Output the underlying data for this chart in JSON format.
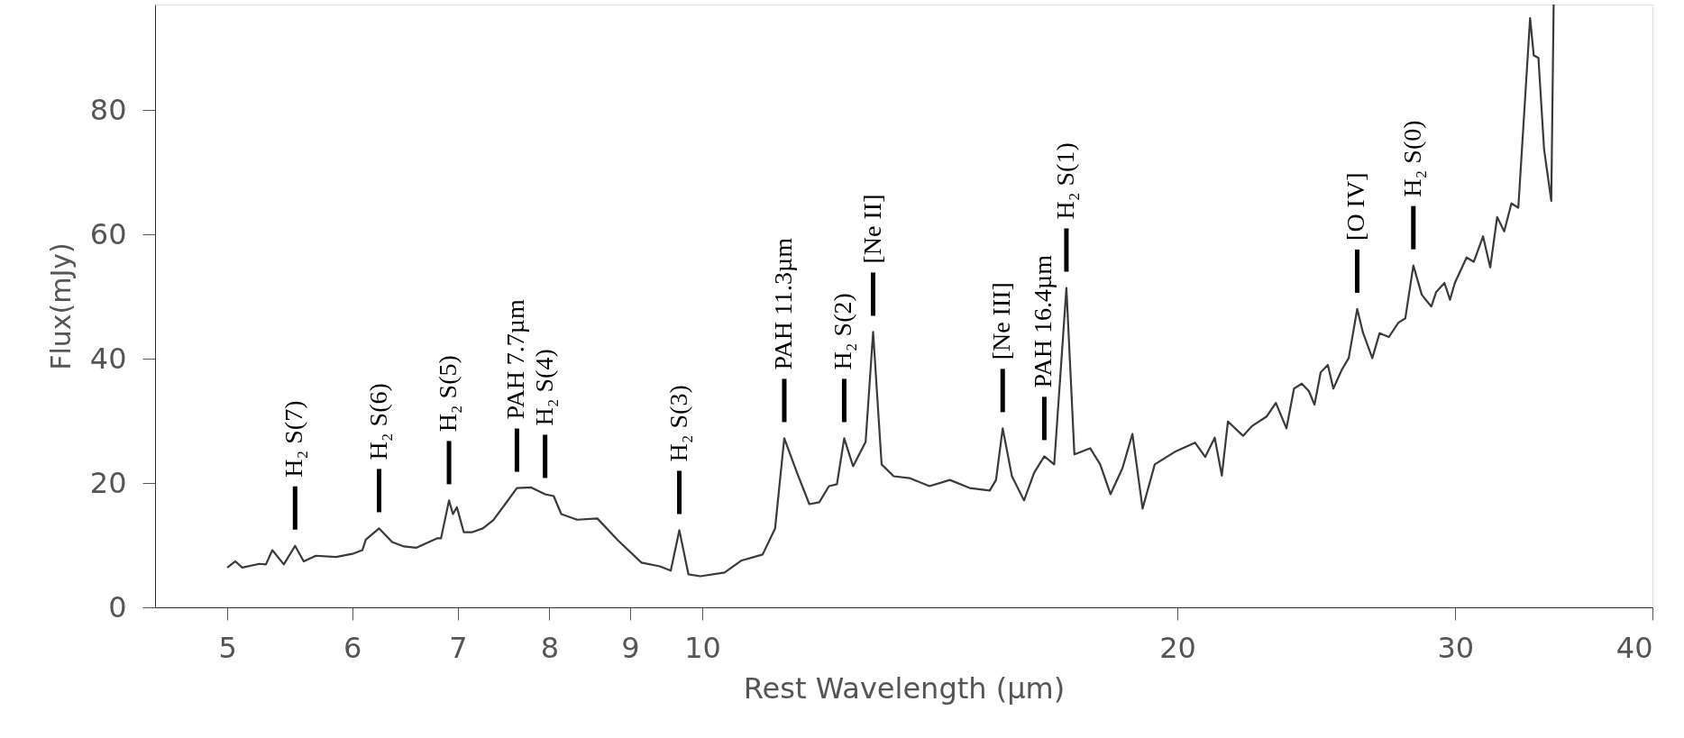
{
  "chart_data": {
    "type": "line",
    "xlabel": "Rest Wavelength (μm)",
    "ylabel": "Flux(mJy)",
    "log": "x",
    "grid": false,
    "xlim": [
      4.5,
      40
    ],
    "xticks": [
      5,
      6,
      7,
      8,
      9,
      10,
      20,
      30,
      40
    ],
    "ylim": [
      0,
      97
    ],
    "yticks": [
      0,
      20,
      40,
      60,
      80
    ],
    "line_style": "solid",
    "marker": "none",
    "series": [
      {
        "color": "#3a3a3a",
        "x": [
          5.0,
          5.06,
          5.11,
          5.24,
          5.29,
          5.34,
          5.43,
          5.52,
          5.59,
          5.69,
          5.86,
          6.0,
          6.09,
          6.12,
          6.24,
          6.36,
          6.47,
          6.59,
          6.79,
          6.83,
          6.91,
          6.95,
          6.99,
          7.06,
          7.15,
          7.26,
          7.37,
          7.5,
          7.63,
          7.79,
          7.95,
          8.05,
          8.14,
          8.33,
          8.58,
          8.84,
          9.15,
          9.4,
          9.55,
          9.67,
          9.8,
          9.97,
          10.33,
          10.58,
          10.92,
          11.12,
          11.27,
          11.48,
          11.69,
          11.86,
          12.03,
          12.17,
          12.3,
          12.46,
          12.69,
          12.83,
          12.99,
          13.22,
          13.53,
          13.93,
          14.35,
          14.77,
          15.21,
          15.35,
          15.5,
          15.71,
          15.99,
          16.23,
          16.47,
          16.71,
          17.01,
          17.21,
          17.61,
          17.87,
          18.14,
          18.46,
          18.73,
          19.01,
          19.35,
          19.92,
          20.52,
          20.83,
          21.12,
          21.34,
          21.53,
          22.01,
          22.31,
          22.78,
          23.09,
          23.45,
          23.71,
          23.98,
          24.23,
          24.43,
          24.65,
          24.91,
          25.11,
          25.42,
          25.68,
          26.0,
          26.22,
          26.58,
          26.86,
          27.23,
          27.61,
          27.89,
          28.22,
          28.57,
          28.97,
          29.17,
          29.53,
          29.77,
          29.98,
          30.5,
          30.82,
          31.24,
          31.57,
          31.89,
          32.22,
          32.56,
          32.89,
          33.46,
          33.64,
          33.87,
          34.15,
          34.51,
          34.63
        ],
        "values": [
          6.4,
          7.4,
          6.4,
          7.0,
          6.9,
          9.2,
          6.9,
          9.9,
          7.4,
          8.3,
          8.1,
          8.6,
          9.2,
          10.9,
          12.7,
          10.5,
          9.8,
          9.6,
          11.1,
          11.1,
          17.2,
          15.0,
          16.1,
          12.1,
          12.1,
          12.7,
          14.0,
          16.6,
          19.2,
          19.3,
          18.2,
          17.9,
          15.0,
          14.1,
          14.3,
          10.8,
          7.2,
          6.6,
          5.9,
          12.4,
          5.3,
          5.0,
          5.6,
          7.5,
          8.5,
          12.7,
          27.2,
          21.7,
          16.6,
          16.9,
          19.5,
          19.8,
          27.2,
          22.7,
          26.6,
          44.3,
          23.0,
          21.1,
          20.8,
          19.5,
          20.5,
          19.2,
          18.8,
          20.5,
          28.8,
          21.1,
          17.2,
          21.7,
          24.3,
          23.0,
          51.4,
          24.6,
          25.6,
          23.0,
          18.2,
          22.4,
          27.9,
          15.9,
          23.0,
          25.0,
          26.5,
          24.2,
          27.3,
          21.2,
          29.9,
          27.6,
          29.2,
          30.7,
          32.9,
          28.8,
          35.2,
          36.0,
          34.8,
          32.6,
          37.8,
          39.0,
          35.2,
          38.2,
          40.1,
          48.0,
          44.2,
          40.1,
          44.1,
          43.5,
          45.8,
          46.5,
          55.0,
          50.3,
          48.4,
          50.7,
          52.2,
          49.5,
          52.2,
          56.3,
          55.6,
          59.7,
          54.7,
          62.8,
          60.5,
          65.0,
          64.3,
          94.8,
          88.8,
          88.4,
          73.7,
          65.4,
          97
        ]
      }
    ],
    "annotations": [
      {
        "text": "H₂ S(7)",
        "x": 5.52,
        "y": 9.9
      },
      {
        "text": "H₂ S(6)",
        "x": 6.24,
        "y": 12.7
      },
      {
        "text": "H₂ S(5)",
        "x": 6.91,
        "y": 17.2
      },
      {
        "text": "PAH 7.7µm",
        "x": 7.63,
        "y": 19.2
      },
      {
        "text": "H₂ S(4)",
        "x": 7.95,
        "y": 18.2
      },
      {
        "text": "H₂ S(3)",
        "x": 9.67,
        "y": 12.4
      },
      {
        "text": "PAH 11.3µm",
        "x": 11.27,
        "y": 27.2
      },
      {
        "text": "H₂ S(2)",
        "x": 12.3,
        "y": 27.2
      },
      {
        "text": "[Ne II]",
        "x": 12.83,
        "y": 44.3
      },
      {
        "text": "[Ne III]",
        "x": 15.5,
        "y": 28.8
      },
      {
        "text": "PAH 16.4µm",
        "x": 16.47,
        "y": 24.3
      },
      {
        "text": "H₂ S(1)",
        "x": 17.01,
        "y": 51.4
      },
      {
        "text": "[O IV]",
        "x": 26.0,
        "y": 48.0
      },
      {
        "text": "H₂ S(0)",
        "x": 28.22,
        "y": 55.0
      }
    ]
  }
}
